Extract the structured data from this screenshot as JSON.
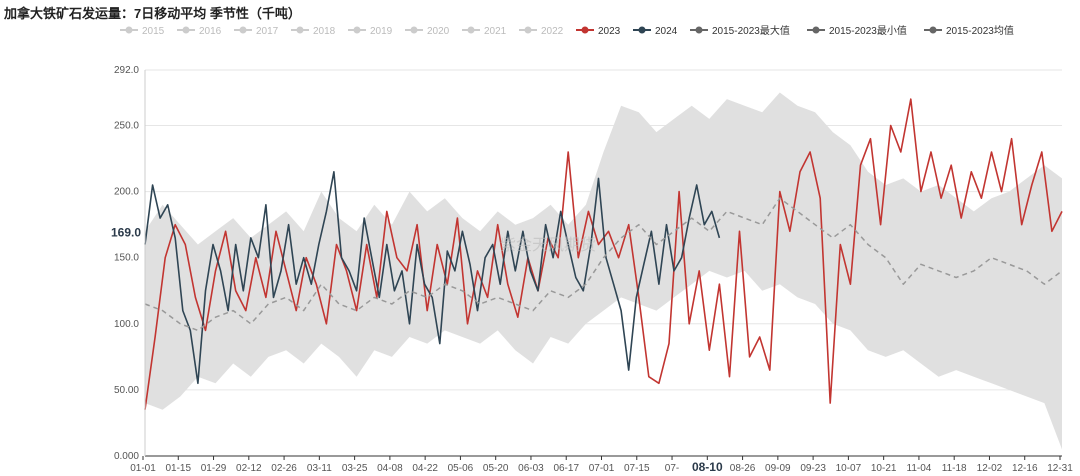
{
  "chart_data": {
    "type": "line",
    "title": "加拿大铁矿石发运量：7日移动平均 季节性（千吨）",
    "ylim": [
      0,
      292
    ],
    "yticks": [
      "0.000",
      "50.00",
      "100.0",
      "150.0",
      "200.0",
      "250.0",
      "292.0"
    ],
    "ytick_values": [
      0,
      50,
      100,
      150,
      200,
      250,
      292
    ],
    "xticks": [
      "01-01",
      "01-15",
      "01-29",
      "02-12",
      "02-26",
      "03-11",
      "03-25",
      "04-08",
      "04-22",
      "05-06",
      "05-20",
      "06-03",
      "06-17",
      "07-01",
      "07-15",
      "07-",
      "08-10",
      "08-26",
      "09-09",
      "09-23",
      "10-07",
      "10-21",
      "11-04",
      "11-18",
      "12-02",
      "12-16",
      "12-31"
    ],
    "highlight_x": "08-10",
    "highlight_y": "169.0",
    "legend": [
      "2015",
      "2016",
      "2017",
      "2018",
      "2019",
      "2020",
      "2021",
      "2022",
      "2023",
      "2024",
      "2015-2023最大值",
      "2015-2023最小值",
      "2015-2023均值"
    ],
    "legend_colors": [
      "#cccccc",
      "#cccccc",
      "#cccccc",
      "#cccccc",
      "#cccccc",
      "#cccccc",
      "#cccccc",
      "#cccccc",
      "#c23531",
      "#2f4554",
      "#666666",
      "#666666",
      "#666666"
    ],
    "watermark": "紫金天风期货",
    "band_points": [
      [
        0,
        170,
        40
      ],
      [
        7,
        190,
        35
      ],
      [
        14,
        175,
        45
      ],
      [
        21,
        160,
        60
      ],
      [
        28,
        170,
        55
      ],
      [
        35,
        180,
        70
      ],
      [
        42,
        165,
        60
      ],
      [
        49,
        175,
        75
      ],
      [
        56,
        185,
        80
      ],
      [
        63,
        170,
        70
      ],
      [
        70,
        200,
        85
      ],
      [
        77,
        180,
        75
      ],
      [
        84,
        170,
        60
      ],
      [
        91,
        190,
        80
      ],
      [
        98,
        175,
        75
      ],
      [
        105,
        200,
        90
      ],
      [
        112,
        185,
        85
      ],
      [
        119,
        195,
        95
      ],
      [
        126,
        180,
        90
      ],
      [
        133,
        170,
        85
      ],
      [
        140,
        185,
        95
      ],
      [
        147,
        175,
        80
      ],
      [
        154,
        180,
        70
      ],
      [
        161,
        190,
        90
      ],
      [
        168,
        175,
        85
      ],
      [
        175,
        190,
        100
      ],
      [
        182,
        230,
        110
      ],
      [
        189,
        265,
        120
      ],
      [
        196,
        260,
        115
      ],
      [
        203,
        245,
        110
      ],
      [
        210,
        255,
        120
      ],
      [
        217,
        265,
        130
      ],
      [
        224,
        255,
        140
      ],
      [
        231,
        270,
        135
      ],
      [
        238,
        265,
        140
      ],
      [
        245,
        260,
        125
      ],
      [
        252,
        275,
        130
      ],
      [
        259,
        265,
        120
      ],
      [
        266,
        260,
        115
      ],
      [
        273,
        245,
        100
      ],
      [
        280,
        235,
        95
      ],
      [
        287,
        215,
        80
      ],
      [
        294,
        205,
        75
      ],
      [
        301,
        210,
        80
      ],
      [
        308,
        200,
        70
      ],
      [
        315,
        205,
        60
      ],
      [
        322,
        195,
        65
      ],
      [
        329,
        185,
        60
      ],
      [
        336,
        195,
        55
      ],
      [
        343,
        200,
        50
      ],
      [
        350,
        210,
        45
      ],
      [
        357,
        220,
        40
      ],
      [
        364,
        210,
        5
      ]
    ],
    "series": [
      {
        "name": "2023",
        "color": "#c23531",
        "points": [
          [
            0,
            35
          ],
          [
            4,
            90
          ],
          [
            8,
            150
          ],
          [
            12,
            175
          ],
          [
            16,
            160
          ],
          [
            20,
            120
          ],
          [
            24,
            95
          ],
          [
            28,
            140
          ],
          [
            32,
            170
          ],
          [
            36,
            125
          ],
          [
            40,
            110
          ],
          [
            44,
            150
          ],
          [
            48,
            120
          ],
          [
            52,
            170
          ],
          [
            56,
            140
          ],
          [
            60,
            110
          ],
          [
            64,
            150
          ],
          [
            68,
            130
          ],
          [
            72,
            100
          ],
          [
            76,
            160
          ],
          [
            80,
            140
          ],
          [
            84,
            110
          ],
          [
            88,
            160
          ],
          [
            92,
            120
          ],
          [
            96,
            185
          ],
          [
            100,
            150
          ],
          [
            104,
            140
          ],
          [
            108,
            175
          ],
          [
            112,
            110
          ],
          [
            116,
            160
          ],
          [
            120,
            130
          ],
          [
            124,
            180
          ],
          [
            128,
            100
          ],
          [
            132,
            140
          ],
          [
            136,
            120
          ],
          [
            140,
            175
          ],
          [
            144,
            130
          ],
          [
            148,
            105
          ],
          [
            152,
            150
          ],
          [
            156,
            125
          ],
          [
            160,
            165
          ],
          [
            164,
            150
          ],
          [
            168,
            230
          ],
          [
            172,
            150
          ],
          [
            176,
            185
          ],
          [
            180,
            160
          ],
          [
            184,
            170
          ],
          [
            188,
            150
          ],
          [
            192,
            175
          ],
          [
            196,
            120
          ],
          [
            200,
            60
          ],
          [
            204,
            55
          ],
          [
            208,
            85
          ],
          [
            212,
            200
          ],
          [
            216,
            100
          ],
          [
            220,
            140
          ],
          [
            224,
            80
          ],
          [
            228,
            130
          ],
          [
            232,
            60
          ],
          [
            236,
            170
          ],
          [
            240,
            75
          ],
          [
            244,
            90
          ],
          [
            248,
            65
          ],
          [
            252,
            200
          ],
          [
            256,
            170
          ],
          [
            260,
            215
          ],
          [
            264,
            230
          ],
          [
            268,
            195
          ],
          [
            272,
            40
          ],
          [
            276,
            160
          ],
          [
            280,
            130
          ],
          [
            284,
            220
          ],
          [
            288,
            240
          ],
          [
            292,
            175
          ],
          [
            296,
            250
          ],
          [
            300,
            230
          ],
          [
            304,
            270
          ],
          [
            308,
            200
          ],
          [
            312,
            230
          ],
          [
            316,
            195
          ],
          [
            320,
            220
          ],
          [
            324,
            180
          ],
          [
            328,
            215
          ],
          [
            332,
            195
          ],
          [
            336,
            230
          ],
          [
            340,
            200
          ],
          [
            344,
            240
          ],
          [
            348,
            175
          ],
          [
            352,
            205
          ],
          [
            356,
            230
          ],
          [
            360,
            170
          ],
          [
            364,
            185
          ]
        ]
      },
      {
        "name": "2024",
        "color": "#2f4554",
        "points": [
          [
            0,
            160
          ],
          [
            3,
            205
          ],
          [
            6,
            180
          ],
          [
            9,
            190
          ],
          [
            12,
            165
          ],
          [
            15,
            110
          ],
          [
            18,
            95
          ],
          [
            21,
            55
          ],
          [
            24,
            125
          ],
          [
            27,
            160
          ],
          [
            30,
            140
          ],
          [
            33,
            110
          ],
          [
            36,
            160
          ],
          [
            39,
            125
          ],
          [
            42,
            165
          ],
          [
            45,
            150
          ],
          [
            48,
            190
          ],
          [
            51,
            120
          ],
          [
            54,
            140
          ],
          [
            57,
            175
          ],
          [
            60,
            130
          ],
          [
            63,
            150
          ],
          [
            66,
            130
          ],
          [
            69,
            160
          ],
          [
            72,
            185
          ],
          [
            75,
            215
          ],
          [
            78,
            150
          ],
          [
            81,
            140
          ],
          [
            84,
            125
          ],
          [
            87,
            180
          ],
          [
            90,
            150
          ],
          [
            93,
            120
          ],
          [
            96,
            160
          ],
          [
            99,
            125
          ],
          [
            102,
            140
          ],
          [
            105,
            100
          ],
          [
            108,
            160
          ],
          [
            111,
            130
          ],
          [
            114,
            120
          ],
          [
            117,
            85
          ],
          [
            120,
            155
          ],
          [
            123,
            140
          ],
          [
            126,
            170
          ],
          [
            129,
            145
          ],
          [
            132,
            110
          ],
          [
            135,
            150
          ],
          [
            138,
            160
          ],
          [
            141,
            130
          ],
          [
            144,
            170
          ],
          [
            147,
            140
          ],
          [
            150,
            170
          ],
          [
            153,
            140
          ],
          [
            156,
            125
          ],
          [
            159,
            175
          ],
          [
            162,
            150
          ],
          [
            165,
            185
          ],
          [
            168,
            160
          ],
          [
            171,
            135
          ],
          [
            174,
            125
          ],
          [
            177,
            160
          ],
          [
            180,
            210
          ],
          [
            183,
            150
          ],
          [
            186,
            130
          ],
          [
            189,
            110
          ],
          [
            192,
            65
          ],
          [
            195,
            120
          ],
          [
            198,
            145
          ],
          [
            201,
            170
          ],
          [
            204,
            130
          ],
          [
            207,
            175
          ],
          [
            210,
            140
          ],
          [
            213,
            150
          ],
          [
            216,
            180
          ],
          [
            219,
            205
          ],
          [
            222,
            175
          ],
          [
            225,
            185
          ],
          [
            228,
            165
          ]
        ]
      },
      {
        "name": "2015-2023均值",
        "color": "#999999",
        "dashed": true,
        "points": [
          [
            0,
            115
          ],
          [
            7,
            110
          ],
          [
            14,
            100
          ],
          [
            21,
            95
          ],
          [
            28,
            105
          ],
          [
            35,
            110
          ],
          [
            42,
            100
          ],
          [
            49,
            115
          ],
          [
            56,
            120
          ],
          [
            63,
            110
          ],
          [
            70,
            130
          ],
          [
            77,
            115
          ],
          [
            84,
            110
          ],
          [
            91,
            120
          ],
          [
            98,
            115
          ],
          [
            105,
            125
          ],
          [
            112,
            120
          ],
          [
            119,
            130
          ],
          [
            126,
            125
          ],
          [
            133,
            115
          ],
          [
            140,
            120
          ],
          [
            147,
            115
          ],
          [
            154,
            110
          ],
          [
            161,
            125
          ],
          [
            168,
            120
          ],
          [
            175,
            130
          ],
          [
            182,
            150
          ],
          [
            189,
            165
          ],
          [
            196,
            175
          ],
          [
            203,
            160
          ],
          [
            210,
            170
          ],
          [
            217,
            180
          ],
          [
            224,
            170
          ],
          [
            231,
            185
          ],
          [
            238,
            180
          ],
          [
            245,
            175
          ],
          [
            252,
            195
          ],
          [
            259,
            185
          ],
          [
            266,
            175
          ],
          [
            273,
            165
          ],
          [
            280,
            175
          ],
          [
            287,
            160
          ],
          [
            294,
            150
          ],
          [
            301,
            130
          ],
          [
            308,
            145
          ],
          [
            315,
            140
          ],
          [
            322,
            135
          ],
          [
            329,
            140
          ],
          [
            336,
            150
          ],
          [
            343,
            145
          ],
          [
            350,
            140
          ],
          [
            357,
            130
          ],
          [
            364,
            140
          ]
        ]
      }
    ]
  }
}
